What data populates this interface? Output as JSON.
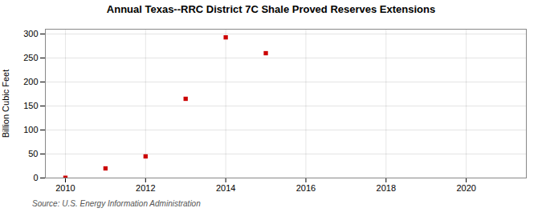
{
  "chart_data": {
    "type": "scatter",
    "title": "Annual Texas--RRC District 7C Shale Proved Reserves Extensions",
    "ylabel": "Billion Cubic Feet",
    "annotation": "Source: U.S. Energy Information Administration",
    "x": [
      2010,
      2011,
      2012,
      2013,
      2014,
      2015
    ],
    "values": [
      0.5,
      20,
      45,
      165,
      293,
      260
    ],
    "color": "#cc0000",
    "marker": "square",
    "xlim": [
      2009.5,
      2021.5
    ],
    "ylim": [
      0,
      310
    ],
    "xticks": [
      2010,
      2012,
      2014,
      2016,
      2018,
      2020
    ],
    "yticks": [
      0,
      50,
      100,
      150,
      200,
      250,
      300
    ],
    "grid": true
  }
}
